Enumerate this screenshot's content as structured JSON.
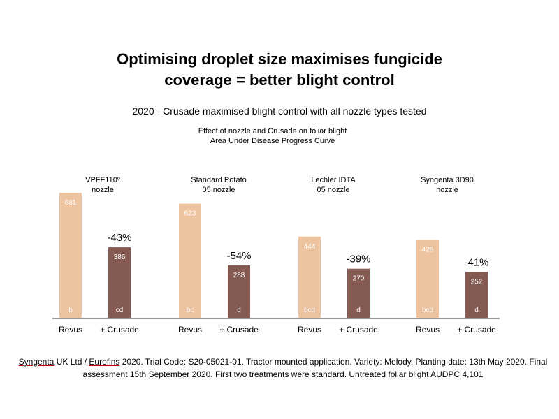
{
  "title": {
    "line1": "Optimising droplet size maximises fungicide",
    "line2": "coverage = better blight control"
  },
  "subtitle": "2020 - Crusade maximised blight control with all nozzle types tested",
  "chart_heading": {
    "line1": "Effect of nozzle and Crusade on foliar blight",
    "line2": "Area Under Disease Progress Curve"
  },
  "colors": {
    "revus": "#eec3a0",
    "crusade": "#845a52",
    "baseline": "#333333",
    "bar_text": "#ffffff"
  },
  "chart_data": {
    "type": "bar",
    "ylabel": "",
    "ylim": [
      0,
      700
    ],
    "series_names": [
      "Revus",
      "+ Crusade"
    ],
    "groups": [
      {
        "label_line1": "VPFF110º",
        "label_line2": "nozzle",
        "bars": [
          {
            "category": "Revus",
            "value": 681,
            "letter": "b"
          },
          {
            "category": "+ Crusade",
            "value": 386,
            "letter": "cd"
          }
        ],
        "change": "-43%"
      },
      {
        "label_line1": "Standard Potato",
        "label_line2": "05 nozzle",
        "bars": [
          {
            "category": "Revus",
            "value": 623,
            "letter": "bc"
          },
          {
            "category": "+ Crusade",
            "value": 288,
            "letter": "d"
          }
        ],
        "change": "-54%"
      },
      {
        "label_line1": "Lechler IDTA",
        "label_line2": "05 nozzle",
        "bars": [
          {
            "category": "Revus",
            "value": 444,
            "letter": "bcd"
          },
          {
            "category": "+ Crusade",
            "value": 270,
            "letter": "d"
          }
        ],
        "change": "-39%"
      },
      {
        "label_line1": "Syngenta 3D90",
        "label_line2": "nozzle",
        "bars": [
          {
            "category": "Revus",
            "value": 426,
            "letter": "bcd"
          },
          {
            "category": "+ Crusade",
            "value": 252,
            "letter": "d"
          }
        ],
        "change": "-41%"
      }
    ]
  },
  "footnote": {
    "brand1": "Syngenta",
    "part1": " UK Ltd / ",
    "brand2": "Eurofins",
    "part2": " 2020. Trial Code: S20-05021-01. Tractor mounted application. Variety: Melody. Planting date: 13th May 2020. Final assessment 15th September 2020. First two treatments were standard. Untreated foliar blight AUDPC 4,101"
  }
}
